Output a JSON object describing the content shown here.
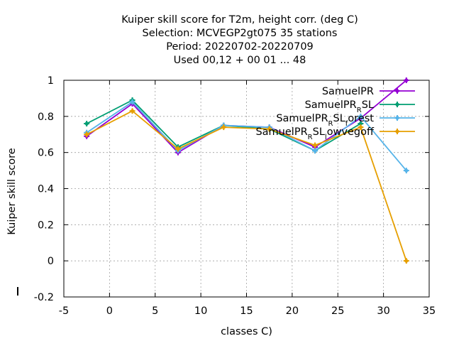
{
  "chart_data": {
    "type": "line",
    "title_lines": [
      "Kuiper skill score  for T2m, height corr. (deg C)",
      "Selection: MCVEGP2gt075     35 stations",
      "Period: 20220702-20220709",
      "Used  00,12  + 00 01 ... 48"
    ],
    "xlabel": "classes C)",
    "ylabel": "Kuiper skill score",
    "xlim": [
      -5,
      35
    ],
    "ylim": [
      -0.2,
      1
    ],
    "xticks": [
      -5,
      0,
      5,
      10,
      15,
      20,
      25,
      30,
      35
    ],
    "yticks": [
      -0.2,
      0,
      0.2,
      0.4,
      0.6,
      0.8,
      1
    ],
    "ytick_labels": [
      "-0.2",
      "0",
      "0.2",
      "0.4",
      "0.6",
      "0.8",
      "1"
    ],
    "grid": true,
    "legend_position": "top-right",
    "series": [
      {
        "name": "SamuelPR",
        "color": "#9400d3",
        "marker": "plus",
        "x": [
          -2.5,
          2.5,
          7.5,
          12.5,
          17.5,
          22.5,
          27.5,
          32.5
        ],
        "y": [
          0.69,
          0.87,
          0.6,
          0.75,
          0.74,
          0.63,
          0.79,
          1.0
        ]
      },
      {
        "name": "SamuelPR_RSL",
        "name_main": "SamuelPR",
        "name_sub": "R",
        "name_tail": "SL",
        "color": "#009e73",
        "marker": "plus",
        "x": [
          -2.5,
          2.5,
          7.5,
          12.5,
          17.5,
          22.5,
          27.5
        ],
        "y": [
          0.76,
          0.89,
          0.63,
          0.75,
          0.73,
          0.61,
          0.76
        ]
      },
      {
        "name": "SamuelPR_RSL_forest",
        "name_main": "SamuelPR",
        "name_sub": "R",
        "name_mid": "SL",
        "name_sub2": "f",
        "name_tail": "orest",
        "color": "#56b4e9",
        "marker": "plus",
        "x": [
          -2.5,
          2.5,
          7.5,
          12.5,
          17.5,
          22.5,
          27.5,
          32.5
        ],
        "y": [
          0.71,
          0.88,
          0.61,
          0.75,
          0.74,
          0.61,
          0.8,
          0.5
        ]
      },
      {
        "name": "SamuelPR_RSL_lowvegoff",
        "name_main": "SamuelPR",
        "name_sub": "R",
        "name_mid": "SL",
        "name_sub2": "l",
        "name_tail": "owvegoff",
        "color": "#e69f00",
        "marker": "plus",
        "x": [
          -2.5,
          2.5,
          7.5,
          12.5,
          17.5,
          22.5,
          27.5,
          32.5
        ],
        "y": [
          0.7,
          0.83,
          0.62,
          0.74,
          0.73,
          0.64,
          0.74,
          0.0
        ]
      }
    ]
  }
}
